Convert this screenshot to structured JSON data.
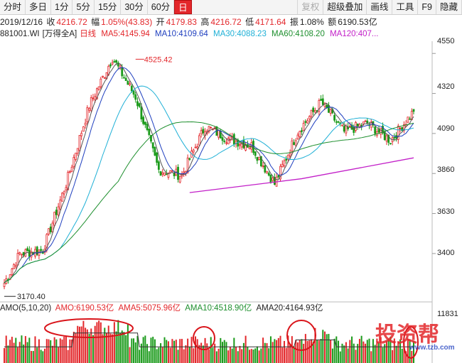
{
  "toolbar": {
    "periods": [
      "分时",
      "多日",
      "1分",
      "5分",
      "15分",
      "30分",
      "60分",
      "日"
    ],
    "active_period": "日",
    "right_items": [
      "复权",
      "超级叠加",
      "画线",
      "工具",
      "F9",
      "隐藏"
    ],
    "disabled_item": "复权"
  },
  "quote": {
    "date": "2019/12/16",
    "close_label": "收",
    "close": "4216.72",
    "change_label": "幅",
    "change": "1.05%(43.83)",
    "open_label": "开",
    "open": "4179.83",
    "high_label": "高",
    "high": "4216.72",
    "low_label": "低",
    "low": "4171.64",
    "amp_label": "振",
    "amp": "1.08%",
    "amount_label": "额",
    "amount": "6190.53亿"
  },
  "ma_line": {
    "code": "881001.WI",
    "fq": "[万得全A]",
    "period": "日线",
    "ma5": "MA5:4145.94",
    "ma10": "MA10:4109.64",
    "ma30": "MA30:4088.23",
    "ma60": "MA60:4108.20",
    "ma120": "MA120:407..."
  },
  "amo_line": {
    "title": "AMO(5,10,20)",
    "amo": "AMO:6190.53亿",
    "ama5": "AMA5:5075.96亿",
    "ama10": "AMA10:4518.90亿",
    "ama20": "AMA20:4164.93亿"
  },
  "axis": {
    "price_ticks": [
      "4550",
      "4320",
      "4090",
      "3860",
      "3630",
      "3400"
    ],
    "volume_max": "11831"
  },
  "annotations": {
    "high": "4525.42",
    "low": "3170.40"
  },
  "watermark": {
    "text": "投资帮",
    "url": "www.tzb.com"
  },
  "colors": {
    "up": "#e3272b",
    "down": "#1a9a1a",
    "ma5": "#555555",
    "ma10": "#1f3fbf",
    "ma30": "#1fb0d6",
    "ma60": "#1e8f2e",
    "ma120": "#c21fc8",
    "circle": "#d9141a"
  },
  "chart_data": {
    "type": "candlestick",
    "price_ylim": [
      3130,
      4600
    ],
    "volume_ylim": [
      0,
      11831
    ],
    "ohlc_anchors": [
      {
        "i": 0,
        "c": 3230
      },
      {
        "i": 8,
        "c": 3400
      },
      {
        "i": 20,
        "c": 3420
      },
      {
        "i": 32,
        "c": 3800
      },
      {
        "i": 44,
        "c": 4250
      },
      {
        "i": 56,
        "c": 4525
      },
      {
        "i": 68,
        "c": 4300
      },
      {
        "i": 80,
        "c": 3880
      },
      {
        "i": 92,
        "c": 3850
      },
      {
        "i": 104,
        "c": 4130
      },
      {
        "i": 116,
        "c": 4060
      },
      {
        "i": 128,
        "c": 4020
      },
      {
        "i": 140,
        "c": 3800
      },
      {
        "i": 152,
        "c": 4100
      },
      {
        "i": 164,
        "c": 4270
      },
      {
        "i": 176,
        "c": 4100
      },
      {
        "i": 188,
        "c": 4150
      },
      {
        "i": 200,
        "c": 4050
      },
      {
        "i": 212,
        "c": 4216.72
      }
    ],
    "ma120_segment": {
      "from_i": 96,
      "values": [
        3750,
        3950
      ]
    }
  }
}
